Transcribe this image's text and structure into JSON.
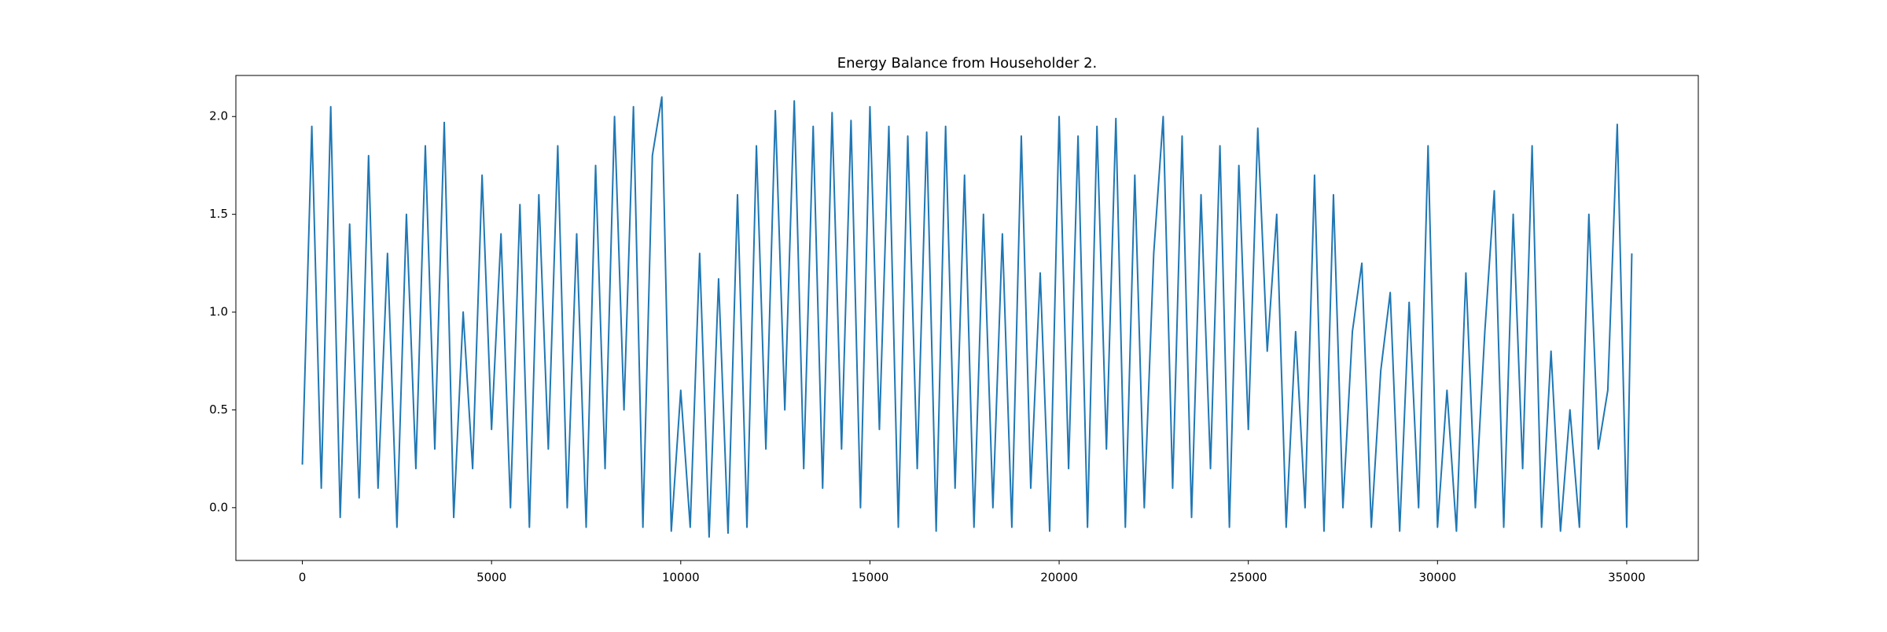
{
  "chart_data": {
    "type": "line",
    "title": "Energy Balance from Householder 2.",
    "color": "#1f77b4",
    "x": [
      0,
      250,
      500,
      750,
      1000,
      1250,
      1500,
      1750,
      2000,
      2250,
      2500,
      2750,
      3000,
      3250,
      3500,
      3750,
      4000,
      4250,
      4500,
      4750,
      5000,
      5250,
      5500,
      5750,
      6000,
      6250,
      6500,
      6750,
      7000,
      7250,
      7500,
      7750,
      8000,
      8250,
      8500,
      8750,
      9000,
      9250,
      9500,
      9750,
      10000,
      10250,
      10500,
      10750,
      11000,
      11250,
      11500,
      11750,
      12000,
      12250,
      12500,
      12750,
      13000,
      13250,
      13500,
      13750,
      14000,
      14250,
      14500,
      14750,
      15000,
      15250,
      15500,
      15750,
      16000,
      16250,
      16500,
      16750,
      17000,
      17250,
      17500,
      17750,
      18000,
      18250,
      18500,
      18750,
      19000,
      19250,
      19500,
      19750,
      20000,
      20250,
      20500,
      20750,
      21000,
      21250,
      21500,
      21750,
      22000,
      22250,
      22500,
      22750,
      23000,
      23250,
      23500,
      23750,
      24000,
      24250,
      24500,
      24750,
      25000,
      25250,
      25500,
      25750,
      26000,
      26250,
      26500,
      26750,
      27000,
      27250,
      27500,
      27750,
      28000,
      28250,
      28500,
      28750,
      29000,
      29250,
      29500,
      29750,
      30000,
      30250,
      30500,
      30750,
      31000,
      31250,
      31500,
      31750,
      32000,
      32250,
      32500,
      32750,
      33000,
      33250,
      33500,
      33750,
      34000,
      34250,
      34500,
      34750,
      35000,
      35135
    ],
    "values": [
      0.22,
      1.95,
      0.1,
      2.05,
      -0.05,
      1.45,
      0.05,
      1.8,
      0.1,
      1.3,
      -0.1,
      1.5,
      0.2,
      1.85,
      0.3,
      1.97,
      -0.05,
      1.0,
      0.2,
      1.7,
      0.4,
      1.4,
      0.0,
      1.55,
      -0.1,
      1.6,
      0.3,
      1.85,
      0.0,
      1.4,
      -0.1,
      1.75,
      0.2,
      2.0,
      0.5,
      2.05,
      -0.1,
      1.8,
      2.1,
      -0.12,
      0.6,
      -0.1,
      1.3,
      -0.15,
      1.17,
      -0.13,
      1.6,
      -0.1,
      1.85,
      0.3,
      2.03,
      0.5,
      2.08,
      0.2,
      1.95,
      0.1,
      2.02,
      0.3,
      1.98,
      0.0,
      2.05,
      0.4,
      1.95,
      -0.1,
      1.9,
      0.2,
      1.92,
      -0.12,
      1.95,
      0.1,
      1.7,
      -0.1,
      1.5,
      0.0,
      1.4,
      -0.1,
      1.9,
      0.1,
      1.2,
      -0.12,
      2.0,
      0.2,
      1.9,
      -0.1,
      1.95,
      0.3,
      1.99,
      -0.1,
      1.7,
      0.0,
      1.3,
      2.0,
      0.1,
      1.9,
      -0.05,
      1.6,
      0.2,
      1.85,
      -0.1,
      1.75,
      0.4,
      1.94,
      0.8,
      1.5,
      -0.1,
      0.9,
      0.0,
      1.7,
      -0.12,
      1.6,
      0.0,
      0.9,
      1.25,
      -0.1,
      0.7,
      1.1,
      -0.12,
      1.05,
      0.0,
      1.85,
      -0.1,
      0.6,
      -0.12,
      1.2,
      0.0,
      0.9,
      1.62,
      -0.1,
      1.5,
      0.2,
      1.85,
      -0.1,
      0.8,
      -0.12,
      0.5,
      -0.1,
      1.5,
      0.3,
      0.6,
      1.96,
      -0.1,
      1.3
    ],
    "xlim": [
      -1757,
      36892
    ],
    "ylim": [
      -0.27,
      2.21
    ],
    "xticks": [
      0,
      5000,
      10000,
      15000,
      20000,
      25000,
      30000,
      35000
    ],
    "yticks": [
      {
        "value": 0,
        "label": "0.0"
      },
      0.5,
      {
        "value": 1,
        "label": "1.0"
      },
      1.5,
      {
        "value": 2,
        "label": "2.0"
      }
    ]
  }
}
